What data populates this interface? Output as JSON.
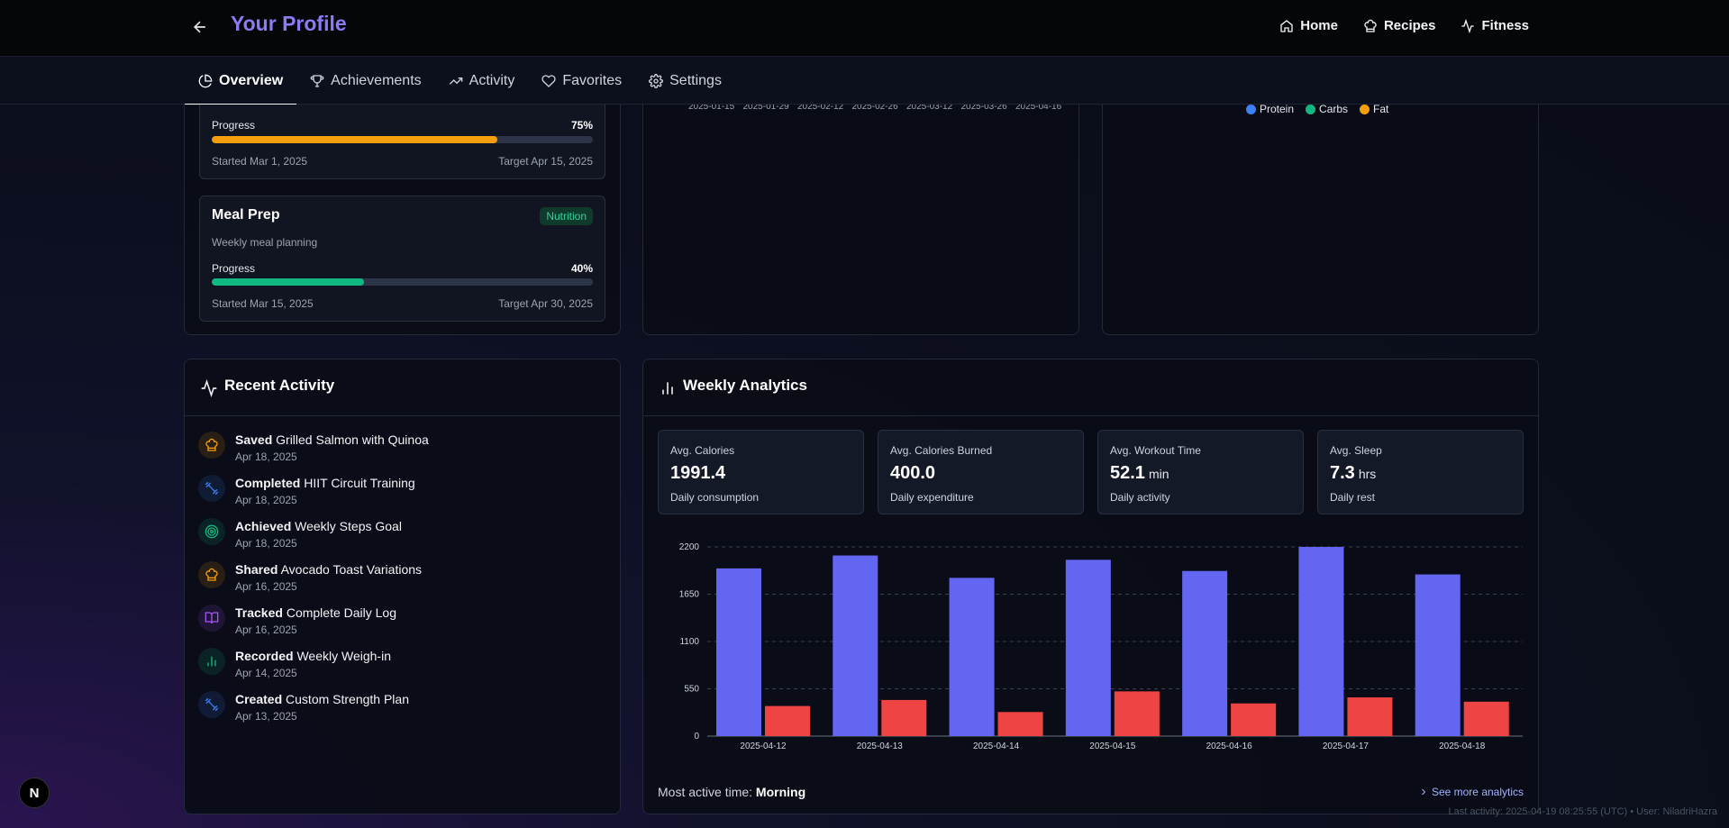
{
  "header": {
    "title": "Your Profile",
    "nav": [
      {
        "label": "Home",
        "icon": "home-icon"
      },
      {
        "label": "Recipes",
        "icon": "chef-hat-icon"
      },
      {
        "label": "Fitness",
        "icon": "activity-icon"
      }
    ]
  },
  "tabs": [
    {
      "label": "Overview",
      "icon": "pie-chart-icon",
      "active": true
    },
    {
      "label": "Achievements",
      "icon": "trophy-icon",
      "active": false
    },
    {
      "label": "Activity",
      "icon": "trending-up-icon",
      "active": false
    },
    {
      "label": "Favorites",
      "icon": "heart-icon",
      "active": false
    },
    {
      "label": "Settings",
      "icon": "gear-icon",
      "active": false
    }
  ],
  "goals": [
    {
      "progress_label": "Progress",
      "progress_text": "75%",
      "progress": 0.75,
      "color": "#f59e0b",
      "started": "Started Mar 1, 2025",
      "target": "Target Apr 15, 2025"
    },
    {
      "title": "Meal Prep",
      "badge": "Nutrition",
      "description": "Weekly meal planning",
      "progress_label": "Progress",
      "progress_text": "40%",
      "progress": 0.4,
      "color": "#10b981",
      "started": "Started Mar 15, 2025",
      "target": "Target Apr 30, 2025"
    }
  ],
  "partial_chart_ticks": [
    "2025-01-15",
    "2025-01-29",
    "2025-02-12",
    "2025-02-26",
    "2025-03-12",
    "2025-03-26",
    "2025-04-16"
  ],
  "macro_legend": [
    {
      "label": "Protein",
      "color": "#3b82f6"
    },
    {
      "label": "Carbs",
      "color": "#10b981"
    },
    {
      "label": "Fat",
      "color": "#f59e0b"
    }
  ],
  "recent_activity": {
    "title": "Recent Activity",
    "items": [
      {
        "verb": "Saved",
        "object": "Grilled Salmon with Quinoa",
        "date": "Apr 18, 2025",
        "icon": "chef-hat-icon",
        "color": "#f59e0b"
      },
      {
        "verb": "Completed",
        "object": "HIIT Circuit Training",
        "date": "Apr 18, 2025",
        "icon": "dumbbell-icon",
        "color": "#3b82f6"
      },
      {
        "verb": "Achieved",
        "object": "Weekly Steps Goal",
        "date": "Apr 18, 2025",
        "icon": "target-icon",
        "color": "#10b981"
      },
      {
        "verb": "Shared",
        "object": "Avocado Toast Variations",
        "date": "Apr 16, 2025",
        "icon": "chef-hat-icon",
        "color": "#f59e0b"
      },
      {
        "verb": "Tracked",
        "object": "Complete Daily Log",
        "date": "Apr 16, 2025",
        "icon": "book-icon",
        "color": "#a855f7"
      },
      {
        "verb": "Recorded",
        "object": "Weekly Weigh-in",
        "date": "Apr 14, 2025",
        "icon": "bar-chart-icon",
        "color": "#10b981"
      },
      {
        "verb": "Created",
        "object": "Custom Strength Plan",
        "date": "Apr 13, 2025",
        "icon": "dumbbell-icon",
        "color": "#3b82f6"
      }
    ]
  },
  "weekly_analytics": {
    "title": "Weekly Analytics",
    "stats": [
      {
        "label": "Avg. Calories",
        "value": "1991.4",
        "unit": "",
        "sub": "Daily consumption"
      },
      {
        "label": "Avg. Calories Burned",
        "value": "400.0",
        "unit": "",
        "sub": "Daily expenditure"
      },
      {
        "label": "Avg. Workout Time",
        "value": "52.1",
        "unit": "min",
        "sub": "Daily activity"
      },
      {
        "label": "Avg. Sleep",
        "value": "7.3",
        "unit": "hrs",
        "sub": "Daily rest"
      }
    ],
    "most_active_label": "Most active time:",
    "most_active_value": "Morning",
    "see_more": "See more analytics"
  },
  "chart_data": {
    "type": "bar",
    "categories": [
      "2025-04-12",
      "2025-04-13",
      "2025-04-14",
      "2025-04-15",
      "2025-04-16",
      "2025-04-17",
      "2025-04-18"
    ],
    "series": [
      {
        "values": [
          1950,
          2100,
          1840,
          2050,
          1920,
          2200,
          1880
        ],
        "color": "#6366f1"
      },
      {
        "values": [
          350,
          420,
          280,
          520,
          380,
          450,
          400
        ],
        "color": "#ef4444"
      }
    ],
    "yticks": [
      0,
      550,
      1100,
      1650,
      2200
    ],
    "ylim": [
      0,
      2200
    ],
    "grid": true
  },
  "footer": {
    "last_activity": "Last activity: 2025-04-19 08:25:55 (UTC) • User: NiladriHazra",
    "badge": "N"
  }
}
